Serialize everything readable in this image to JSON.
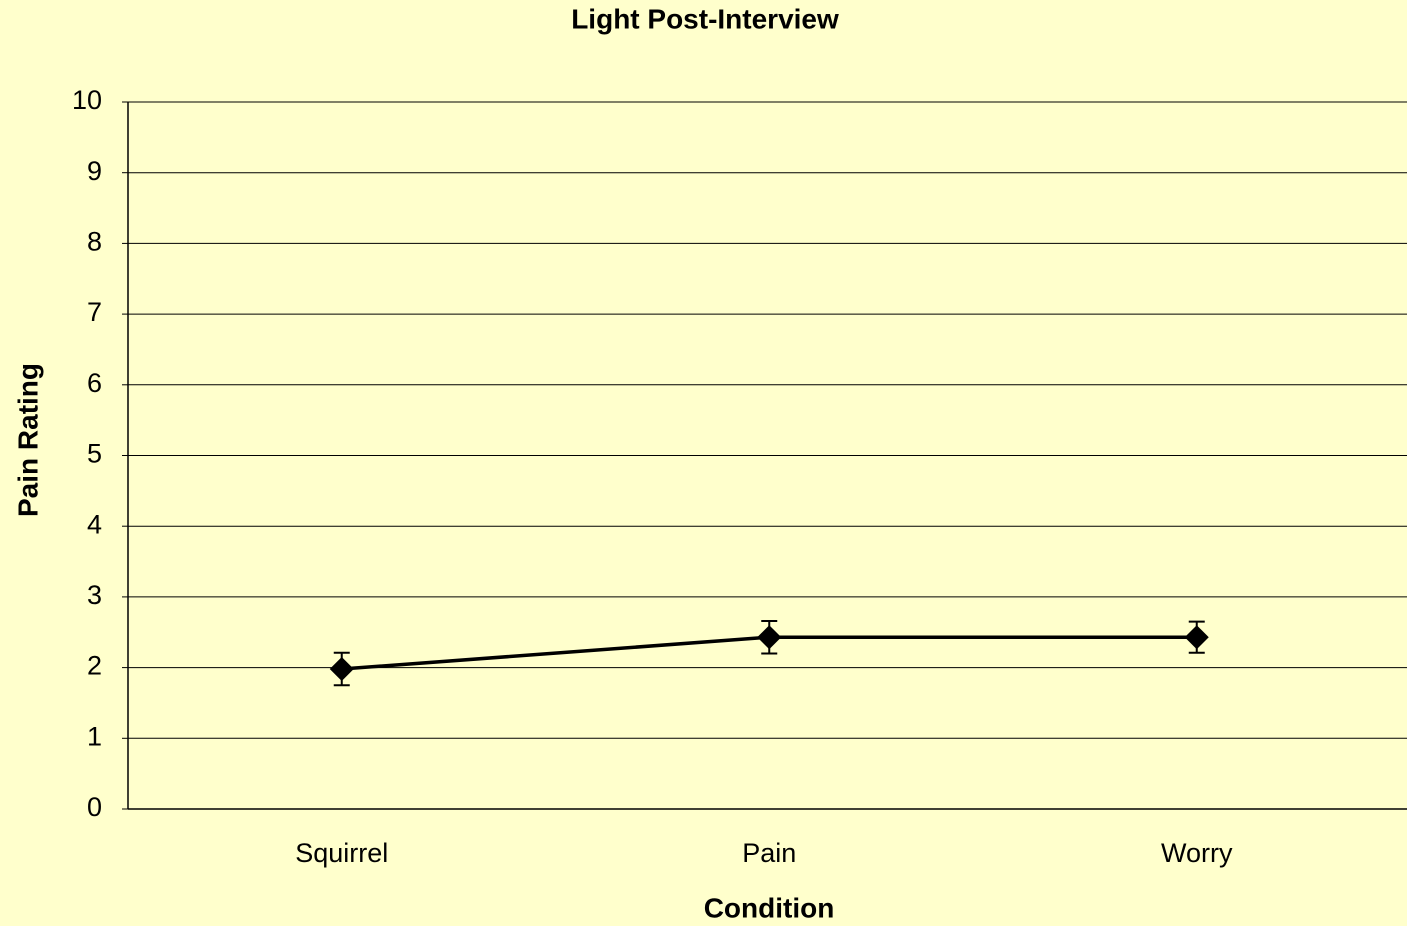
{
  "chart_data": {
    "type": "line",
    "title": "Light Post-Interview",
    "x_label": "Condition",
    "y_label": "Pain Rating",
    "categories": [
      "Squirrel",
      "Pain",
      "Worry"
    ],
    "series": [
      {
        "name": "Pain Rating",
        "color": "#000000",
        "values": [
          1.98,
          2.43,
          2.43
        ],
        "errors": [
          0.23,
          0.23,
          0.22
        ]
      }
    ],
    "ylim": [
      0,
      10
    ],
    "yticks": [
      0,
      1,
      2,
      3,
      4,
      5,
      6,
      7,
      8,
      9,
      10
    ],
    "grid": true
  }
}
